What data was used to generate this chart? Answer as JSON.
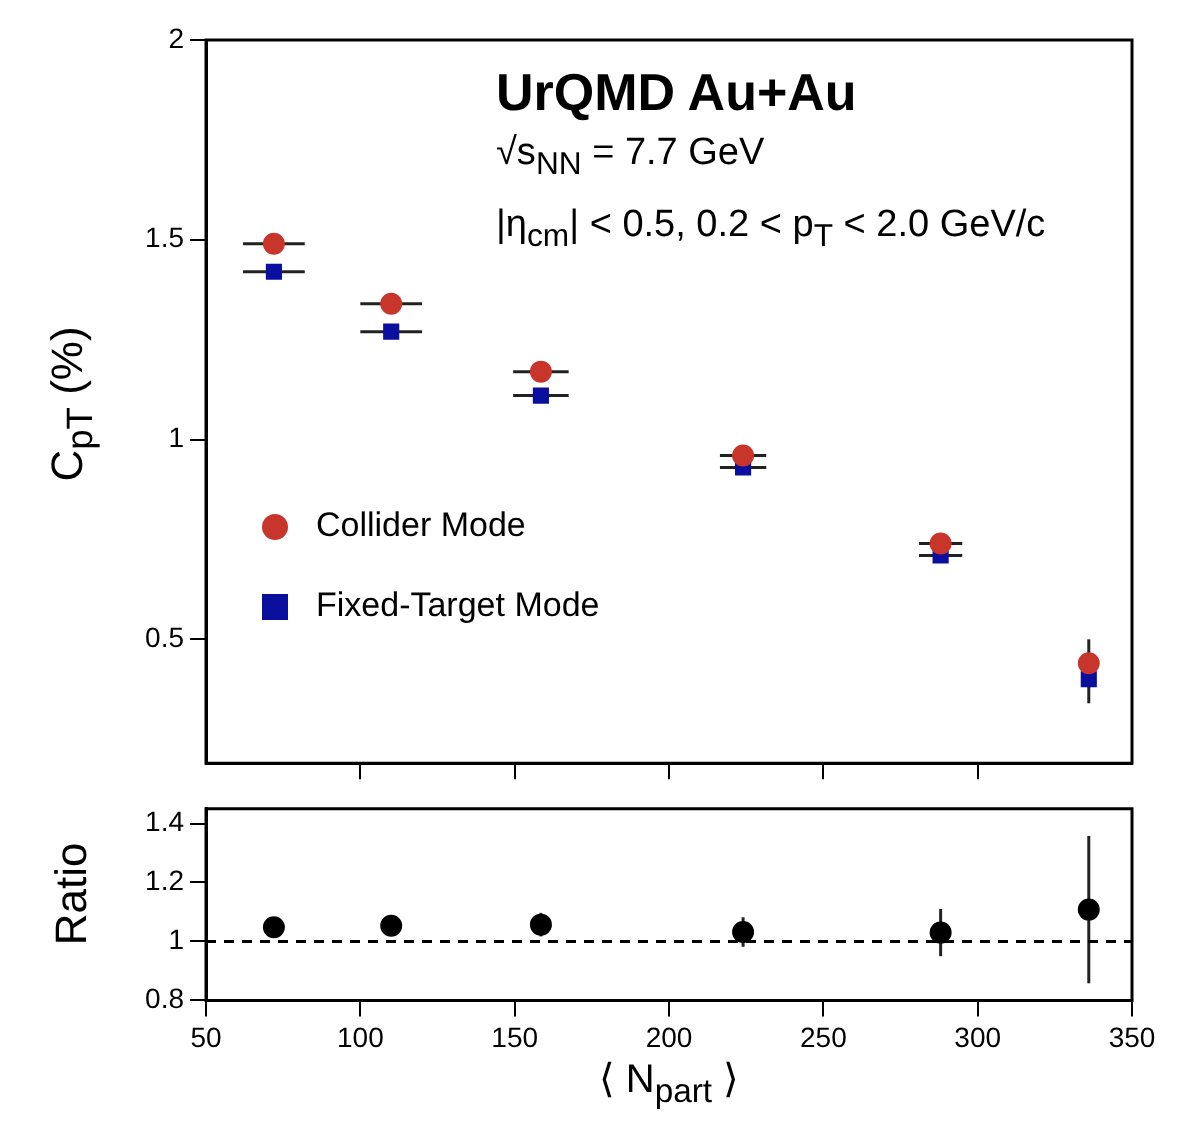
{
  "chart_data": [
    {
      "type": "scatter",
      "ylabel": "C$_{pT}$ (%)",
      "legend": "center left",
      "tick_labels": "y",
      "annotations": [
        "UrQMD Au+Au",
        "√s$_{NN}$ = 7.7 GeV",
        "|η$_{cm}$| < 0.5, 0.2 < p$_{T}$ < 2.0 GeV/c"
      ],
      "xlim": [
        50,
        350
      ],
      "xticks": [
        {
          "value": 100,
          "label": null
        },
        {
          "value": 150,
          "label": null
        },
        {
          "value": 200,
          "label": null
        },
        {
          "value": 250,
          "label": null
        },
        {
          "value": 300,
          "label": null
        }
      ],
      "ylim": [
        0.19,
        2
      ],
      "yticks": [
        0.5,
        1,
        1.5,
        2
      ],
      "series": [
        {
          "name": "Collider Mode",
          "color": "#c8352a",
          "marker": "circle",
          "x": [
            72,
            110,
            158.5,
            224,
            288,
            336
          ],
          "values": [
            1.49,
            1.34,
            1.17,
            0.96,
            0.74,
            0.44
          ],
          "errors": [
            null,
            null,
            null,
            null,
            null,
            0.06
          ],
          "xerrors": [
            10,
            10,
            9,
            7.5,
            7,
            null
          ]
        },
        {
          "name": "Fixed-Target Mode",
          "color": "#0b0f9e",
          "marker": "square",
          "x": [
            72,
            110,
            158.5,
            224,
            288,
            336
          ],
          "values": [
            1.42,
            1.27,
            1.11,
            0.93,
            0.71,
            0.4
          ],
          "errors": [
            null,
            null,
            null,
            null,
            null,
            0.06
          ],
          "xerrors": [
            10,
            10,
            9,
            7.5,
            7,
            null
          ]
        }
      ]
    },
    {
      "type": "scatter",
      "ylabel": "Ratio",
      "xlabel": "⟨ N$_{part}$ ⟩",
      "xlim": [
        50,
        350
      ],
      "xticks": [
        50,
        100,
        150,
        200,
        250,
        300,
        350
      ],
      "ylim": [
        0.8,
        1.45
      ],
      "yticks": [
        0.8,
        1,
        1.2,
        1.4
      ],
      "ref_lines": [
        {
          "axis": "y",
          "value": 1,
          "line_style": "dashed"
        }
      ],
      "series": [
        {
          "color": "#000000",
          "marker": "circle",
          "x": [
            72,
            110,
            158.5,
            224,
            288,
            336
          ],
          "values": [
            1.048,
            1.053,
            1.057,
            1.032,
            1.03,
            1.108
          ],
          "errors": [
            0.026,
            0.03,
            0.04,
            0.05,
            0.08,
            0.25
          ]
        }
      ]
    }
  ]
}
